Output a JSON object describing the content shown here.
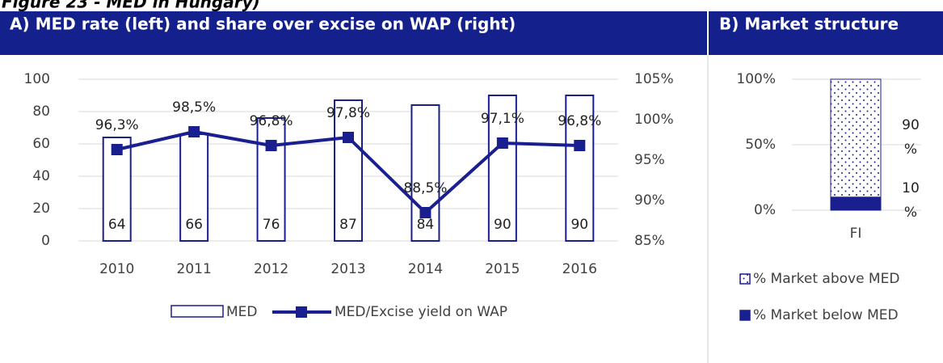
{
  "figure_title": "Figure 23 - MED in Hungary)",
  "chart_data": [
    {
      "type": "bar_line",
      "title": "A) MED rate (left) and share over excise on WAP (right)",
      "categories": [
        "2010",
        "2011",
        "2012",
        "2013",
        "2014",
        "2015",
        "2016"
      ],
      "series": [
        {
          "name": "MED",
          "color": "#1a1f8f",
          "values": [
            64,
            66,
            76,
            87,
            84,
            90,
            90
          ]
        },
        {
          "name": "MED/Excise yield on WAP",
          "color": "#1a1f8f",
          "axis": "y2",
          "values": [
            96.3,
            98.5,
            96.8,
            97.8,
            88.5,
            97.1,
            96.8
          ],
          "value_labels": [
            "96,3%",
            "98,5%",
            "96,8%",
            "97,8%",
            "88,5%",
            "97,1%",
            "96,8%"
          ]
        }
      ],
      "ylim": [
        0,
        100
      ],
      "yticks": [
        0,
        20,
        40,
        60,
        80,
        100
      ],
      "y2lim": [
        85,
        105
      ],
      "y2ticks": [
        {
          "value": 85,
          "label": "85%"
        },
        {
          "value": 90,
          "label": "90%"
        },
        {
          "value": 95,
          "label": "95%"
        },
        {
          "value": 100,
          "label": "100%"
        },
        {
          "value": 105,
          "label": "105%"
        }
      ],
      "grid": true,
      "legend": "bottom"
    },
    {
      "type": "stacked_bar",
      "title": "B) Market structure",
      "categories": [
        "FI"
      ],
      "series": [
        {
          "name": "% Market below MED",
          "color": "#1a1f8f",
          "values": [
            10
          ],
          "value_labels": [
            "10 %"
          ]
        },
        {
          "name": "% Market above MED",
          "color": "#1a1f8f",
          "pattern": "dots",
          "values": [
            90
          ],
          "value_labels": [
            "90 %"
          ]
        }
      ],
      "ylim": [
        0,
        100
      ],
      "yticks": [
        {
          "value": 0,
          "label": "0%"
        },
        {
          "value": 50,
          "label": "50%"
        },
        {
          "value": 100,
          "label": "100%"
        }
      ],
      "grid": true,
      "legend": "bottom"
    }
  ]
}
